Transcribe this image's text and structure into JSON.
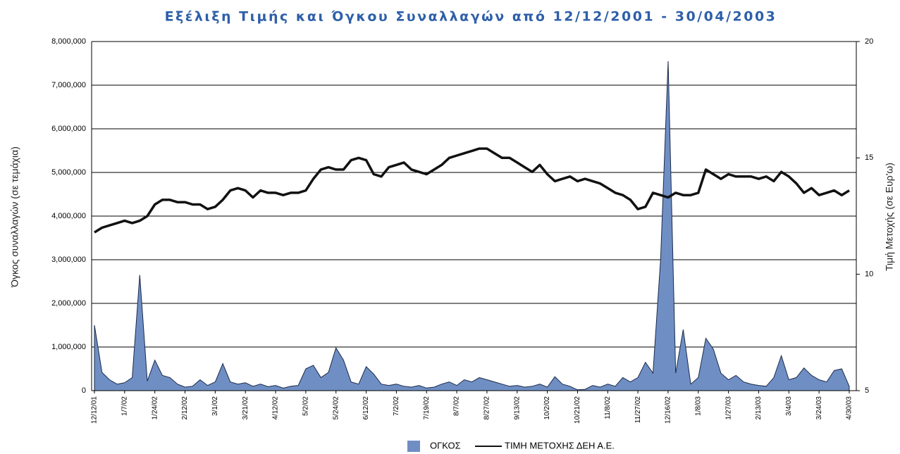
{
  "chart_data": {
    "type": "line",
    "title": "Εξέλιξη Τιμής και Όγκου Συναλλαγών από 12/12/2001 - 30/04/2003",
    "y_label": "Όγκος συναλλαγών (σε τεμάχια)",
    "y2_label": "Τιμή Μετοχής (σε Ευρ'ω)",
    "categories": [
      "12/12/01",
      null,
      null,
      null,
      "1/7/02",
      null,
      null,
      null,
      "1/24/02",
      null,
      null,
      null,
      "2/12/02",
      null,
      null,
      null,
      "3/1/02",
      null,
      null,
      null,
      "3/21/02",
      null,
      null,
      null,
      "4/12/02",
      null,
      null,
      null,
      "5/2/02",
      null,
      null,
      null,
      "5/24/02",
      null,
      null,
      null,
      "6/12/02",
      null,
      null,
      null,
      "7/2/02",
      null,
      null,
      null,
      "7/19/02",
      null,
      null,
      null,
      "8/7/02",
      null,
      null,
      null,
      "8/27/02",
      null,
      null,
      null,
      "9/13/02",
      null,
      null,
      null,
      "10/2/02",
      null,
      null,
      null,
      "10/21/02",
      null,
      null,
      null,
      "11/8/02",
      null,
      null,
      null,
      "11/27/02",
      null,
      null,
      null,
      "12/16/02",
      null,
      null,
      null,
      "1/8/03",
      null,
      null,
      null,
      "1/27/03",
      null,
      null,
      null,
      "2/13/03",
      null,
      null,
      null,
      "3/4/03",
      null,
      null,
      null,
      "3/24/03",
      null,
      null,
      null,
      "4/30/03"
    ],
    "series": [
      {
        "name": "ΟΓΚΟΣ",
        "color": "#6f8fc4",
        "kind": "area",
        "values": [
          1500000,
          420000,
          250000,
          150000,
          180000,
          300000,
          2650000,
          220000,
          700000,
          350000,
          300000,
          150000,
          80000,
          100000,
          250000,
          120000,
          200000,
          620000,
          200000,
          150000,
          180000,
          100000,
          150000,
          90000,
          120000,
          60000,
          100000,
          120000,
          500000,
          580000,
          300000,
          420000,
          980000,
          700000,
          200000,
          150000,
          550000,
          380000,
          150000,
          120000,
          150000,
          100000,
          80000,
          120000,
          60000,
          80000,
          150000,
          200000,
          120000,
          250000,
          200000,
          300000,
          250000,
          200000,
          150000,
          100000,
          120000,
          80000,
          100000,
          150000,
          80000,
          320000,
          150000,
          100000,
          20000,
          30000,
          120000,
          80000,
          150000,
          100000,
          300000,
          200000,
          300000,
          650000,
          400000,
          3000000,
          7550000,
          400000,
          1400000,
          150000,
          300000,
          1200000,
          950000,
          400000,
          250000,
          350000,
          200000,
          150000,
          120000,
          100000,
          300000,
          800000,
          250000,
          300000,
          520000,
          350000,
          250000,
          200000,
          460000,
          500000,
          100000
        ]
      },
      {
        "name": "ΤΙΜΗ ΜΕΤΟΧΗΣ ΔΕΗ Α.Ε.",
        "color": "#111111",
        "kind": "line",
        "axis": "y2",
        "values": [
          11.8,
          12.0,
          12.1,
          12.2,
          12.3,
          12.2,
          12.3,
          12.5,
          13.0,
          13.2,
          13.2,
          13.1,
          13.1,
          13.0,
          13.0,
          12.8,
          12.9,
          13.2,
          13.6,
          13.7,
          13.6,
          13.3,
          13.6,
          13.5,
          13.5,
          13.4,
          13.5,
          13.5,
          13.6,
          14.1,
          14.5,
          14.6,
          14.5,
          14.5,
          14.9,
          15.0,
          14.9,
          14.3,
          14.2,
          14.6,
          14.7,
          14.8,
          14.5,
          14.4,
          14.3,
          14.5,
          14.7,
          15.0,
          15.1,
          15.2,
          15.3,
          15.4,
          15.4,
          15.2,
          15.0,
          15.0,
          14.8,
          14.6,
          14.4,
          14.7,
          14.3,
          14.0,
          14.1,
          14.2,
          14.0,
          14.1,
          14.0,
          13.9,
          13.7,
          13.5,
          13.4,
          13.2,
          12.8,
          12.9,
          13.5,
          13.4,
          13.3,
          13.5,
          13.4,
          13.4,
          13.5,
          14.5,
          14.3,
          14.1,
          14.3,
          14.2,
          14.2,
          14.2,
          14.1,
          14.2,
          14.0,
          14.4,
          14.2,
          13.9,
          13.5,
          13.7,
          13.4,
          13.5,
          13.6,
          13.4,
          13.6
        ]
      }
    ],
    "ylim": [
      0,
      8000000
    ],
    "yticks": [
      0,
      {
        "value": 1000000,
        "label": "1,000,000"
      },
      {
        "value": 2000000,
        "label": "2,000,000"
      },
      {
        "value": 3000000,
        "label": "3,000,000"
      },
      {
        "value": 4000000,
        "label": "4,000,000"
      },
      {
        "value": 5000000,
        "label": "5,000,000"
      },
      {
        "value": 6000000,
        "label": "6,000,000"
      },
      {
        "value": 7000000,
        "label": "7,000,000"
      },
      {
        "value": 8000000,
        "label": "8,000,000"
      }
    ],
    "y2lim": [
      5,
      20
    ],
    "y2ticks": [
      5,
      10,
      15,
      20
    ],
    "grid": true,
    "legend": "bottom"
  }
}
